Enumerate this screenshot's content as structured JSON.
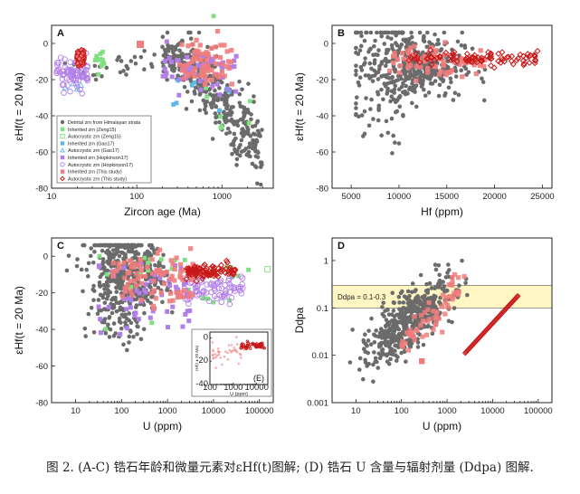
{
  "caption": "图 2. (A-C) 锆石年龄和微量元素对εHf(t)图解; (D) 锆石 U 含量与辐射剂量 (Ddpa) 图解.",
  "colors": {
    "detrital": "#6b6b6b",
    "zeng": "#7fe07f",
    "gao": "#5bb8e8",
    "hopkinson": "#b27fe8",
    "this_study": "#f07c7c",
    "this_study_edge": "#c81818",
    "band_fill": "#fff6c4",
    "band_edge": "#555555"
  },
  "chart_data": [
    {
      "panel": "A",
      "type": "scatter",
      "xlabel": "Zircon age (Ma)",
      "ylabel": "εHf(t = 20 Ma)",
      "xscale": "log",
      "xlim": [
        10,
        4000
      ],
      "ylim": [
        -80,
        10
      ],
      "xticks": [
        10,
        100,
        1000
      ],
      "yticks": [
        -80,
        -60,
        -40,
        -20,
        0
      ],
      "legend_position": "lower-left",
      "legend": [
        {
          "label": "Detrital zrn from Himalayan strata",
          "marker": "circle",
          "color": "#6b6b6b",
          "filled": true
        },
        {
          "label": "Inherited zrn (Zeng15)",
          "marker": "square",
          "color": "#7fe07f",
          "filled": true
        },
        {
          "label": "Autocrystic zrn (Zeng15)",
          "marker": "square",
          "color": "#7fe07f",
          "filled": false
        },
        {
          "label": "Inherited zrn (Gao17)",
          "marker": "square",
          "color": "#5bb8e8",
          "filled": true
        },
        {
          "label": "Autocrystic zrn (Gao17)",
          "marker": "triangle",
          "color": "#5bb8e8",
          "filled": false
        },
        {
          "label": "Inherited zrn (Hopkinson17)",
          "marker": "square",
          "color": "#b27fe8",
          "filled": true
        },
        {
          "label": "Autocrystic zrn (Hopkinson17)",
          "marker": "circle",
          "color": "#b27fe8",
          "filled": false
        },
        {
          "label": "Inherited zrn (This study)",
          "marker": "square",
          "color": "#f07c7c",
          "filled": true
        },
        {
          "label": "Autocrystic zrn (This study)",
          "marker": "diamond",
          "color": "#c81818",
          "filled": false
        }
      ],
      "clusters": [
        {
          "series": "detrital",
          "n": 380,
          "x_log": [
            2.3,
            3.45
          ],
          "y": [
            -75,
            5
          ],
          "trend": "declining"
        },
        {
          "series": "detrital",
          "n": 30,
          "x_log": [
            1.1,
            2.3
          ],
          "y": [
            -20,
            -5
          ]
        },
        {
          "series": "zeng_inh",
          "n": 22,
          "x_log": [
            1.5,
            3.4
          ],
          "y": [
            -25,
            -5
          ]
        },
        {
          "series": "gao_inh",
          "n": 12,
          "x_log": [
            2.4,
            3.1
          ],
          "y": [
            -50,
            -10
          ]
        },
        {
          "series": "hop_inh",
          "n": 60,
          "x_log": [
            2.3,
            3.2
          ],
          "y": [
            -30,
            -5
          ]
        },
        {
          "series": "hop_auto",
          "n": 80,
          "x_log": [
            1.05,
            1.45
          ],
          "y": [
            -30,
            -10
          ]
        },
        {
          "series": "this_inh",
          "n": 70,
          "x_log": [
            2.5,
            3.1
          ],
          "y": [
            -35,
            -5
          ]
        },
        {
          "series": "this_auto",
          "n": 60,
          "x_log": [
            1.3,
            1.4
          ],
          "y": [
            -12,
            -5
          ]
        }
      ]
    },
    {
      "panel": "B",
      "type": "scatter",
      "xlabel": "Hf (ppm)",
      "ylabel": "εHf(t = 20 Ma)",
      "xscale": "linear",
      "xlim": [
        3000,
        26000
      ],
      "ylim": [
        -80,
        10
      ],
      "xticks": [
        5000,
        10000,
        15000,
        20000,
        25000
      ],
      "yticks": [
        -80,
        -60,
        -40,
        -20,
        0
      ],
      "clusters": [
        {
          "series": "detrital",
          "n": 500,
          "x": [
            6000,
            20000
          ],
          "y": [
            -75,
            5
          ]
        },
        {
          "series": "this_inh",
          "n": 80,
          "x": [
            9000,
            19000
          ],
          "y": [
            -20,
            -5
          ]
        },
        {
          "series": "this_auto",
          "n": 90,
          "x": [
            11000,
            24500
          ],
          "y": [
            -12,
            -5
          ]
        }
      ]
    },
    {
      "panel": "C",
      "type": "scatter",
      "xlabel": "U (ppm)",
      "ylabel": "εHf(t = 20 Ma)",
      "xscale": "log",
      "xlim": [
        3,
        200000
      ],
      "ylim": [
        -80,
        10
      ],
      "xticks": [
        10,
        100,
        1000,
        10000,
        100000
      ],
      "yticks": [
        -80,
        -60,
        -40,
        -20,
        0
      ],
      "clusters": [
        {
          "series": "detrital",
          "n": 500,
          "x_log": [
            0.9,
            3.6
          ],
          "y": [
            -75,
            5
          ]
        },
        {
          "series": "zeng_inh",
          "n": 25,
          "x_log": [
            1.5,
            5.0
          ],
          "y": [
            -40,
            -5
          ]
        },
        {
          "series": "hop_inh",
          "n": 60,
          "x_log": [
            1.5,
            3.5
          ],
          "y": [
            -50,
            -5
          ]
        },
        {
          "series": "hop_auto",
          "n": 80,
          "x_log": [
            3.3,
            4.7
          ],
          "y": [
            -28,
            -10
          ]
        },
        {
          "series": "this_inh",
          "n": 90,
          "x_log": [
            1.8,
            3.6
          ],
          "y": [
            -30,
            5
          ]
        },
        {
          "series": "this_auto",
          "n": 90,
          "x_log": [
            3.4,
            4.5
          ],
          "y": [
            -12,
            -4
          ]
        }
      ],
      "inset": {
        "label": "(E)",
        "xlabel": "U (ppm)",
        "ylabel": "εHf(t = 20 Ma)",
        "xscale": "log",
        "xlim": [
          100,
          30000
        ],
        "ylim": [
          -40,
          5
        ],
        "xticks": [
          100,
          1000,
          10000
        ],
        "yticks": [
          -40,
          -20,
          0
        ]
      }
    },
    {
      "panel": "D",
      "type": "scatter",
      "xlabel": "U (ppm)",
      "ylabel": "Ddpa",
      "xscale": "log",
      "yscale": "log",
      "xlim": [
        3,
        200000
      ],
      "ylim": [
        0.001,
        3
      ],
      "xticks": [
        10,
        100,
        1000,
        10000,
        100000
      ],
      "yticks": [
        0.001,
        0.01,
        0.1,
        1
      ],
      "band": {
        "label": "Ddpa = 0.1-0.3",
        "y_range": [
          0.1,
          0.3
        ]
      },
      "clusters": [
        {
          "series": "detrital",
          "n": 500,
          "x_log": [
            0.8,
            3.5
          ],
          "trend": "rising"
        },
        {
          "series": "this_inh",
          "n": 60,
          "x_log": [
            2.0,
            3.4
          ],
          "trend": "rising"
        },
        {
          "series": "this_auto_line",
          "n": 70,
          "x_log": [
            3.4,
            4.55
          ],
          "y_log": [
            -1.95,
            -0.75
          ]
        }
      ]
    }
  ]
}
